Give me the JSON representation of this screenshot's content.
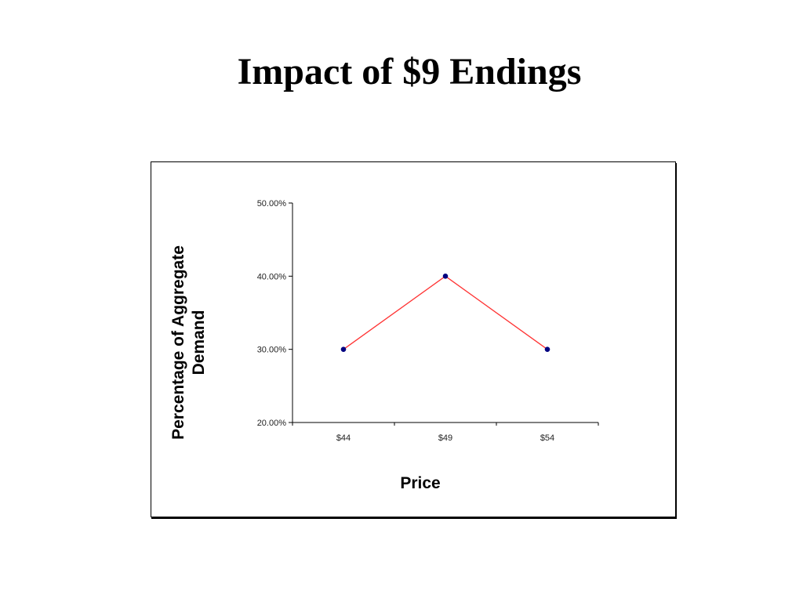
{
  "slide": {
    "title": "Impact of $9 Endings"
  },
  "chart_data": {
    "type": "line",
    "title": "",
    "categories": [
      "$44",
      "$49",
      "$54"
    ],
    "series": [
      {
        "values": [
          0.3,
          0.4,
          0.3
        ]
      }
    ],
    "xlabel": "Price",
    "ylabel_lines": [
      "Percentage of Aggregate",
      "Demand"
    ],
    "ylim": [
      0.2,
      0.5
    ],
    "yticks": [
      0.2,
      0.3,
      0.4,
      0.5
    ],
    "ytick_labels": [
      "20.00%",
      "30.00%",
      "40.00%",
      "50.00%"
    ],
    "grid": false,
    "legend": "none",
    "line_color": "#ff3333",
    "marker_color": "#000080"
  }
}
